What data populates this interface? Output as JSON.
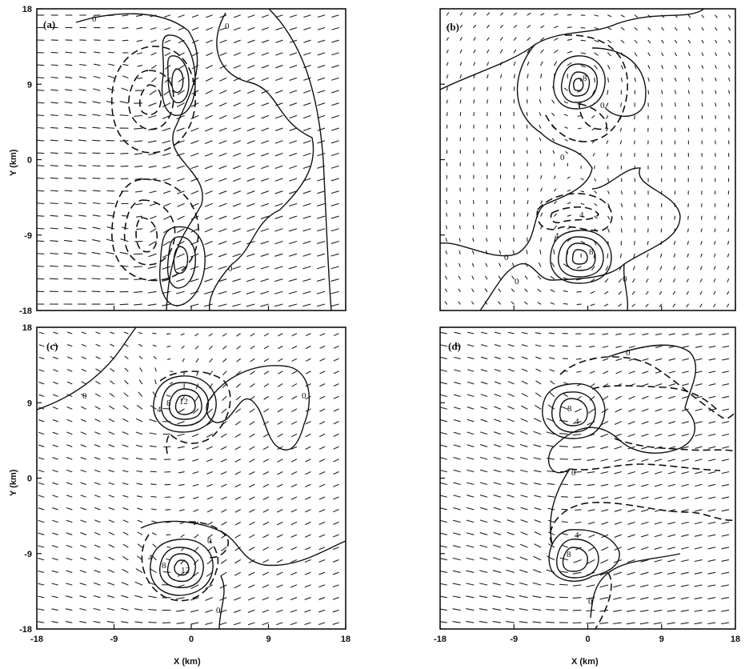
{
  "figure": {
    "x_axis_label": "X (km)",
    "y_axis_label": "Y (km)",
    "x_ticks": [
      "-18",
      "-9",
      "0",
      "9",
      "18"
    ],
    "y_ticks": [
      "18",
      "9",
      "0",
      "-9",
      "-18"
    ]
  },
  "panels": [
    {
      "id": "a",
      "letter": "(a)",
      "zero_labels": [
        "0",
        "0",
        "0"
      ],
      "level_labels": []
    },
    {
      "id": "b",
      "letter": "(b)",
      "zero_labels": [
        "0",
        "0",
        "0",
        "0",
        "0"
      ],
      "level_labels": [
        "8",
        "4",
        "4",
        "8"
      ]
    },
    {
      "id": "c",
      "letter": "(c)",
      "zero_labels": [
        "0",
        "0",
        "0",
        "0"
      ],
      "level_labels": [
        "12",
        "8",
        "4",
        "12",
        "8",
        "4"
      ]
    },
    {
      "id": "d",
      "letter": "(d)",
      "zero_labels": [
        "0",
        "0",
        "0"
      ],
      "level_labels": [
        "8",
        "4",
        "4",
        "8"
      ]
    }
  ],
  "chart_data": [
    {
      "type": "contour",
      "panel": "(a)",
      "xlim": [
        -18,
        18
      ],
      "ylim": [
        -18,
        18
      ],
      "centers": [
        {
          "x": -5,
          "y": 8,
          "sign": "negative"
        },
        {
          "x": -1,
          "y": 10,
          "sign": "positive"
        },
        {
          "x": -5,
          "y": -9,
          "sign": "negative"
        },
        {
          "x": -2,
          "y": -12,
          "sign": "positive"
        }
      ]
    },
    {
      "type": "contour",
      "panel": "(b)",
      "xlim": [
        -18,
        18
      ],
      "ylim": [
        -18,
        18
      ],
      "centers": [
        {
          "x": -1,
          "y": 10,
          "sign": "positive",
          "max_label": 8
        },
        {
          "x": -1,
          "y": -11,
          "sign": "positive",
          "max_label": 8
        }
      ]
    },
    {
      "type": "contour",
      "panel": "(c)",
      "xlim": [
        -18,
        18
      ],
      "ylim": [
        -18,
        18
      ],
      "centers": [
        {
          "x": -2,
          "y": 9,
          "sign": "positive",
          "max_label": 12
        },
        {
          "x": -2,
          "y": -10,
          "sign": "positive",
          "max_label": 12
        }
      ]
    },
    {
      "type": "contour",
      "panel": "(d)",
      "xlim": [
        -18,
        18
      ],
      "ylim": [
        -18,
        18
      ],
      "centers": [
        {
          "x": -3,
          "y": 9,
          "sign": "positive",
          "max_label": 8
        },
        {
          "x": -3,
          "y": -9,
          "sign": "positive",
          "max_label": 8
        }
      ]
    }
  ]
}
